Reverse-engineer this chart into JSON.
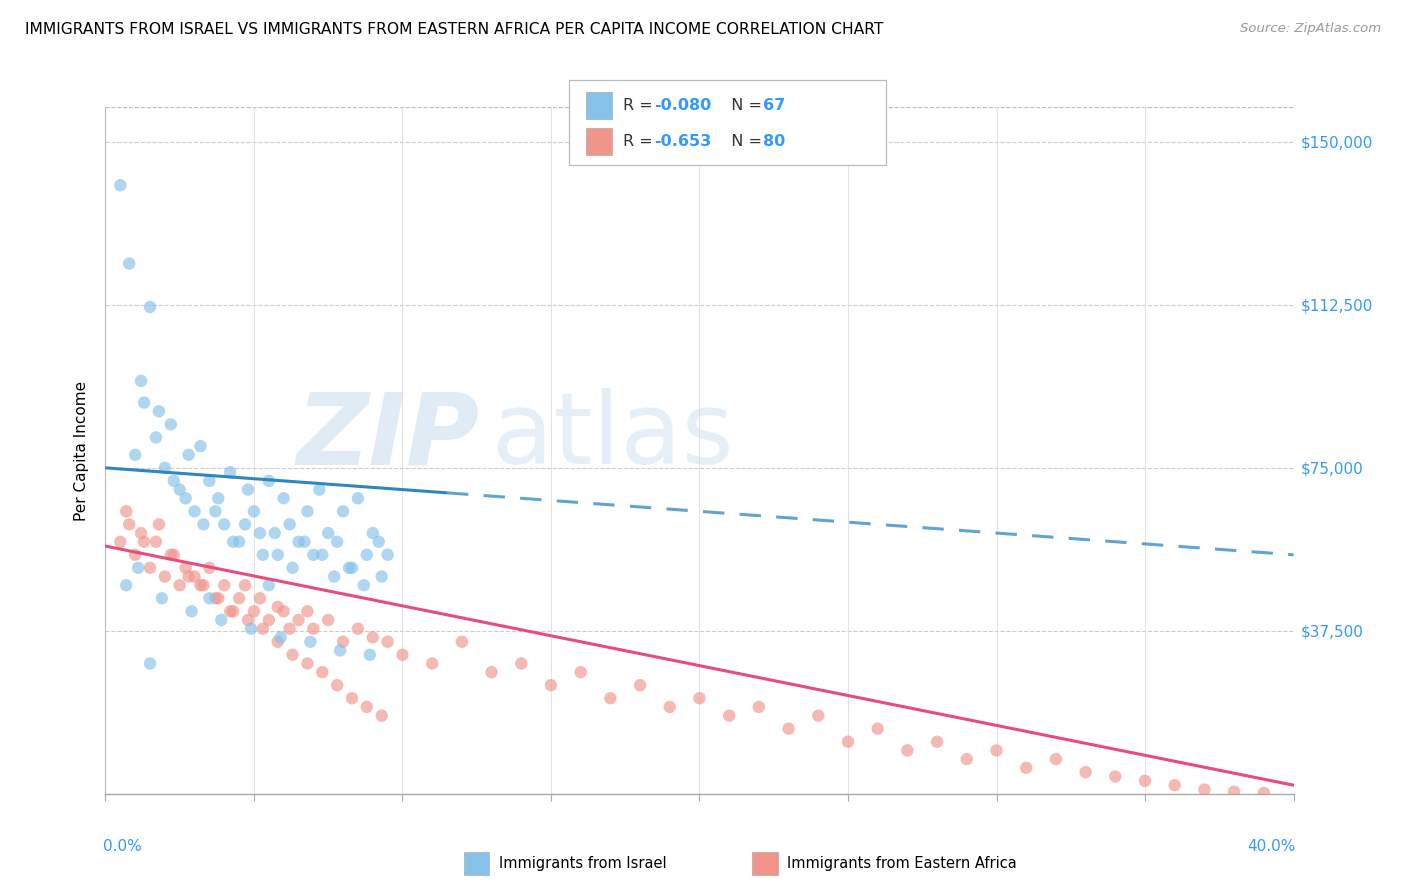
{
  "title": "IMMIGRANTS FROM ISRAEL VS IMMIGRANTS FROM EASTERN AFRICA PER CAPITA INCOME CORRELATION CHART",
  "source": "Source: ZipAtlas.com",
  "ylabel": "Per Capita Income",
  "yticks": [
    0,
    37500,
    75000,
    112500,
    150000
  ],
  "ytick_labels": [
    "",
    "$37,500",
    "$75,000",
    "$112,500",
    "$150,000"
  ],
  "xlim": [
    0.0,
    0.4
  ],
  "ylim": [
    0,
    158000
  ],
  "color_israel": "#85C1E9",
  "color_ea": "#F1948A",
  "line_color_israel": "#2E86C1",
  "line_color_ea": "#E74C7C",
  "watermark_zip": "ZIP",
  "watermark_atlas": "atlas",
  "legend_r1": "-0.080",
  "legend_n1": "67",
  "legend_r2": "-0.653",
  "legend_n2": "80",
  "israel_x": [
    0.005,
    0.008,
    0.012,
    0.015,
    0.018,
    0.02,
    0.022,
    0.025,
    0.028,
    0.03,
    0.032,
    0.035,
    0.038,
    0.04,
    0.042,
    0.045,
    0.048,
    0.05,
    0.052,
    0.055,
    0.058,
    0.06,
    0.062,
    0.065,
    0.068,
    0.07,
    0.072,
    0.075,
    0.078,
    0.08,
    0.082,
    0.085,
    0.088,
    0.09,
    0.092,
    0.095,
    0.01,
    0.013,
    0.017,
    0.023,
    0.027,
    0.033,
    0.037,
    0.043,
    0.047,
    0.053,
    0.057,
    0.063,
    0.067,
    0.073,
    0.077,
    0.083,
    0.087,
    0.093,
    0.007,
    0.011,
    0.019,
    0.029,
    0.039,
    0.049,
    0.059,
    0.069,
    0.079,
    0.089,
    0.015,
    0.035,
    0.055
  ],
  "israel_y": [
    140000,
    122000,
    95000,
    112000,
    88000,
    75000,
    85000,
    70000,
    78000,
    65000,
    80000,
    72000,
    68000,
    62000,
    74000,
    58000,
    70000,
    65000,
    60000,
    72000,
    55000,
    68000,
    62000,
    58000,
    65000,
    55000,
    70000,
    60000,
    58000,
    65000,
    52000,
    68000,
    55000,
    60000,
    58000,
    55000,
    78000,
    90000,
    82000,
    72000,
    68000,
    62000,
    65000,
    58000,
    62000,
    55000,
    60000,
    52000,
    58000,
    55000,
    50000,
    52000,
    48000,
    50000,
    48000,
    52000,
    45000,
    42000,
    40000,
    38000,
    36000,
    35000,
    33000,
    32000,
    30000,
    45000,
    48000
  ],
  "ea_x": [
    0.005,
    0.008,
    0.01,
    0.012,
    0.015,
    0.017,
    0.02,
    0.022,
    0.025,
    0.027,
    0.03,
    0.032,
    0.035,
    0.037,
    0.04,
    0.042,
    0.045,
    0.047,
    0.05,
    0.052,
    0.055,
    0.058,
    0.06,
    0.062,
    0.065,
    0.068,
    0.07,
    0.075,
    0.08,
    0.085,
    0.09,
    0.095,
    0.1,
    0.11,
    0.12,
    0.13,
    0.14,
    0.15,
    0.16,
    0.17,
    0.18,
    0.19,
    0.2,
    0.21,
    0.22,
    0.23,
    0.24,
    0.25,
    0.26,
    0.27,
    0.28,
    0.29,
    0.3,
    0.31,
    0.32,
    0.33,
    0.34,
    0.35,
    0.36,
    0.37,
    0.38,
    0.39,
    0.007,
    0.013,
    0.018,
    0.023,
    0.028,
    0.033,
    0.038,
    0.043,
    0.048,
    0.053,
    0.058,
    0.063,
    0.068,
    0.073,
    0.078,
    0.083,
    0.088,
    0.093
  ],
  "ea_y": [
    58000,
    62000,
    55000,
    60000,
    52000,
    58000,
    50000,
    55000,
    48000,
    52000,
    50000,
    48000,
    52000,
    45000,
    48000,
    42000,
    45000,
    48000,
    42000,
    45000,
    40000,
    43000,
    42000,
    38000,
    40000,
    42000,
    38000,
    40000,
    35000,
    38000,
    36000,
    35000,
    32000,
    30000,
    35000,
    28000,
    30000,
    25000,
    28000,
    22000,
    25000,
    20000,
    22000,
    18000,
    20000,
    15000,
    18000,
    12000,
    15000,
    10000,
    12000,
    8000,
    10000,
    6000,
    8000,
    5000,
    4000,
    3000,
    2000,
    1000,
    500,
    200,
    65000,
    58000,
    62000,
    55000,
    50000,
    48000,
    45000,
    42000,
    40000,
    38000,
    35000,
    32000,
    30000,
    28000,
    25000,
    22000,
    20000,
    18000
  ]
}
